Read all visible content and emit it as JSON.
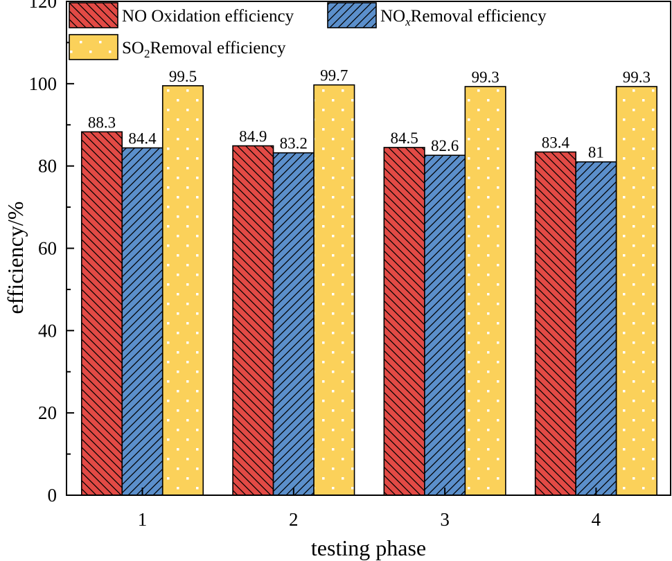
{
  "chart_data": {
    "type": "bar",
    "categories": [
      "1",
      "2",
      "3",
      "4"
    ],
    "series": [
      {
        "name": "NO Oxidation efficiency",
        "legend_main": "NO Oxidation efficiency",
        "color": "#e24a45",
        "pattern": "backslash-hatch",
        "values": [
          88.3,
          84.9,
          84.5,
          83.4
        ],
        "labels": [
          "88.3",
          "84.9",
          "84.5",
          "83.4"
        ]
      },
      {
        "name": "NOx Removal efficiency",
        "legend_main": "NO",
        "legend_sub": "x",
        "legend_tail": "Removal efficiency",
        "color": "#5b8fcb",
        "pattern": "slash-hatch",
        "values": [
          84.4,
          83.2,
          82.6,
          81
        ],
        "labels": [
          "84.4",
          "83.2",
          "82.6",
          "81"
        ]
      },
      {
        "name": "SO2 Removal efficiency",
        "legend_main": "SO",
        "legend_sub": "2",
        "legend_tail": "Removal efficiency",
        "color": "#fbd15a",
        "pattern": "dots",
        "values": [
          99.5,
          99.7,
          99.3,
          99.3
        ],
        "labels": [
          "99.5",
          "99.7",
          "99.3",
          "99.3"
        ]
      }
    ],
    "xlabel": "testing phase",
    "ylabel": "efficiency/%",
    "ylim": [
      0,
      120
    ],
    "yticks": [
      "0",
      "20",
      "40",
      "60",
      "80",
      "100",
      "120"
    ],
    "legend_position": "top-left"
  }
}
